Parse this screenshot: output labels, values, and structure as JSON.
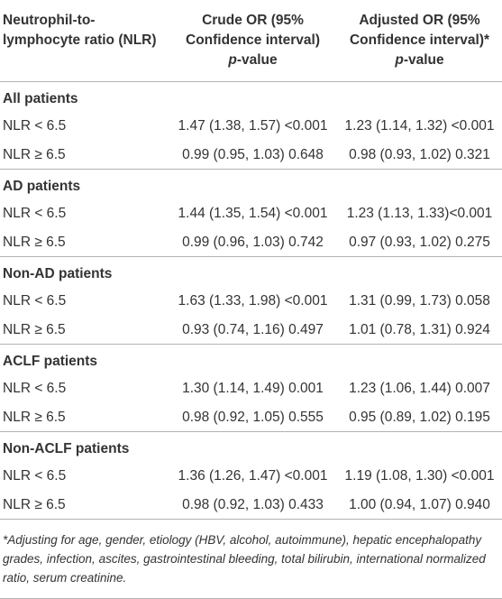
{
  "header": {
    "col1": "Neutrophil-to-lymphocyte ratio (NLR)",
    "col2": "Crude OR (95% Confidence interval)",
    "col2_p": "p",
    "col2_p_suffix": "-value",
    "col3": "Adjusted OR (95% Confidence interval)*",
    "col3_p": "p",
    "col3_p_suffix": "-value"
  },
  "groups": [
    {
      "title": "All patients",
      "rows": [
        {
          "label": "NLR < 6.5",
          "crude": "1.47 (1.38, 1.57) <0.001",
          "adjusted": "1.23 (1.14, 1.32) <0.001"
        },
        {
          "label": "NLR ≥ 6.5",
          "crude": "0.99 (0.95, 1.03) 0.648",
          "adjusted": "0.98 (0.93, 1.02) 0.321"
        }
      ]
    },
    {
      "title": "AD patients",
      "rows": [
        {
          "label": "NLR < 6.5",
          "crude": "1.44 (1.35, 1.54) <0.001",
          "adjusted": "1.23 (1.13, 1.33)<0.001"
        },
        {
          "label": "NLR ≥ 6.5",
          "crude": "0.99 (0.96, 1.03) 0.742",
          "adjusted": "0.97 (0.93, 1.02) 0.275"
        }
      ]
    },
    {
      "title": "Non-AD patients",
      "rows": [
        {
          "label": "NLR < 6.5",
          "crude": "1.63 (1.33, 1.98) <0.001",
          "adjusted": "1.31 (0.99, 1.73) 0.058"
        },
        {
          "label": "NLR ≥ 6.5",
          "crude": "0.93 (0.74, 1.16) 0.497",
          "adjusted": "1.01 (0.78, 1.31) 0.924"
        }
      ]
    },
    {
      "title": "ACLF patients",
      "rows": [
        {
          "label": "NLR < 6.5",
          "crude": "1.30 (1.14, 1.49) 0.001",
          "adjusted": "1.23 (1.06, 1.44) 0.007"
        },
        {
          "label": "NLR ≥ 6.5",
          "crude": "0.98 (0.92, 1.05) 0.555",
          "adjusted": "0.95 (0.89, 1.02) 0.195"
        }
      ]
    },
    {
      "title": "Non-ACLF patients",
      "rows": [
        {
          "label": "NLR < 6.5",
          "crude": "1.36 (1.26, 1.47) <0.001",
          "adjusted": "1.19 (1.08, 1.30) <0.001"
        },
        {
          "label": "NLR ≥ 6.5",
          "crude": "0.98 (0.92, 1.03) 0.433",
          "adjusted": "1.00 (0.94, 1.07) 0.940"
        }
      ]
    }
  ],
  "footnote": "*Adjusting for age, gender, etiology (HBV, alcohol, autoimmune), hepatic encephalopathy grades, infection, ascites, gastrointestinal bleeding, total bilirubin, international normalized ratio, serum creatinine."
}
